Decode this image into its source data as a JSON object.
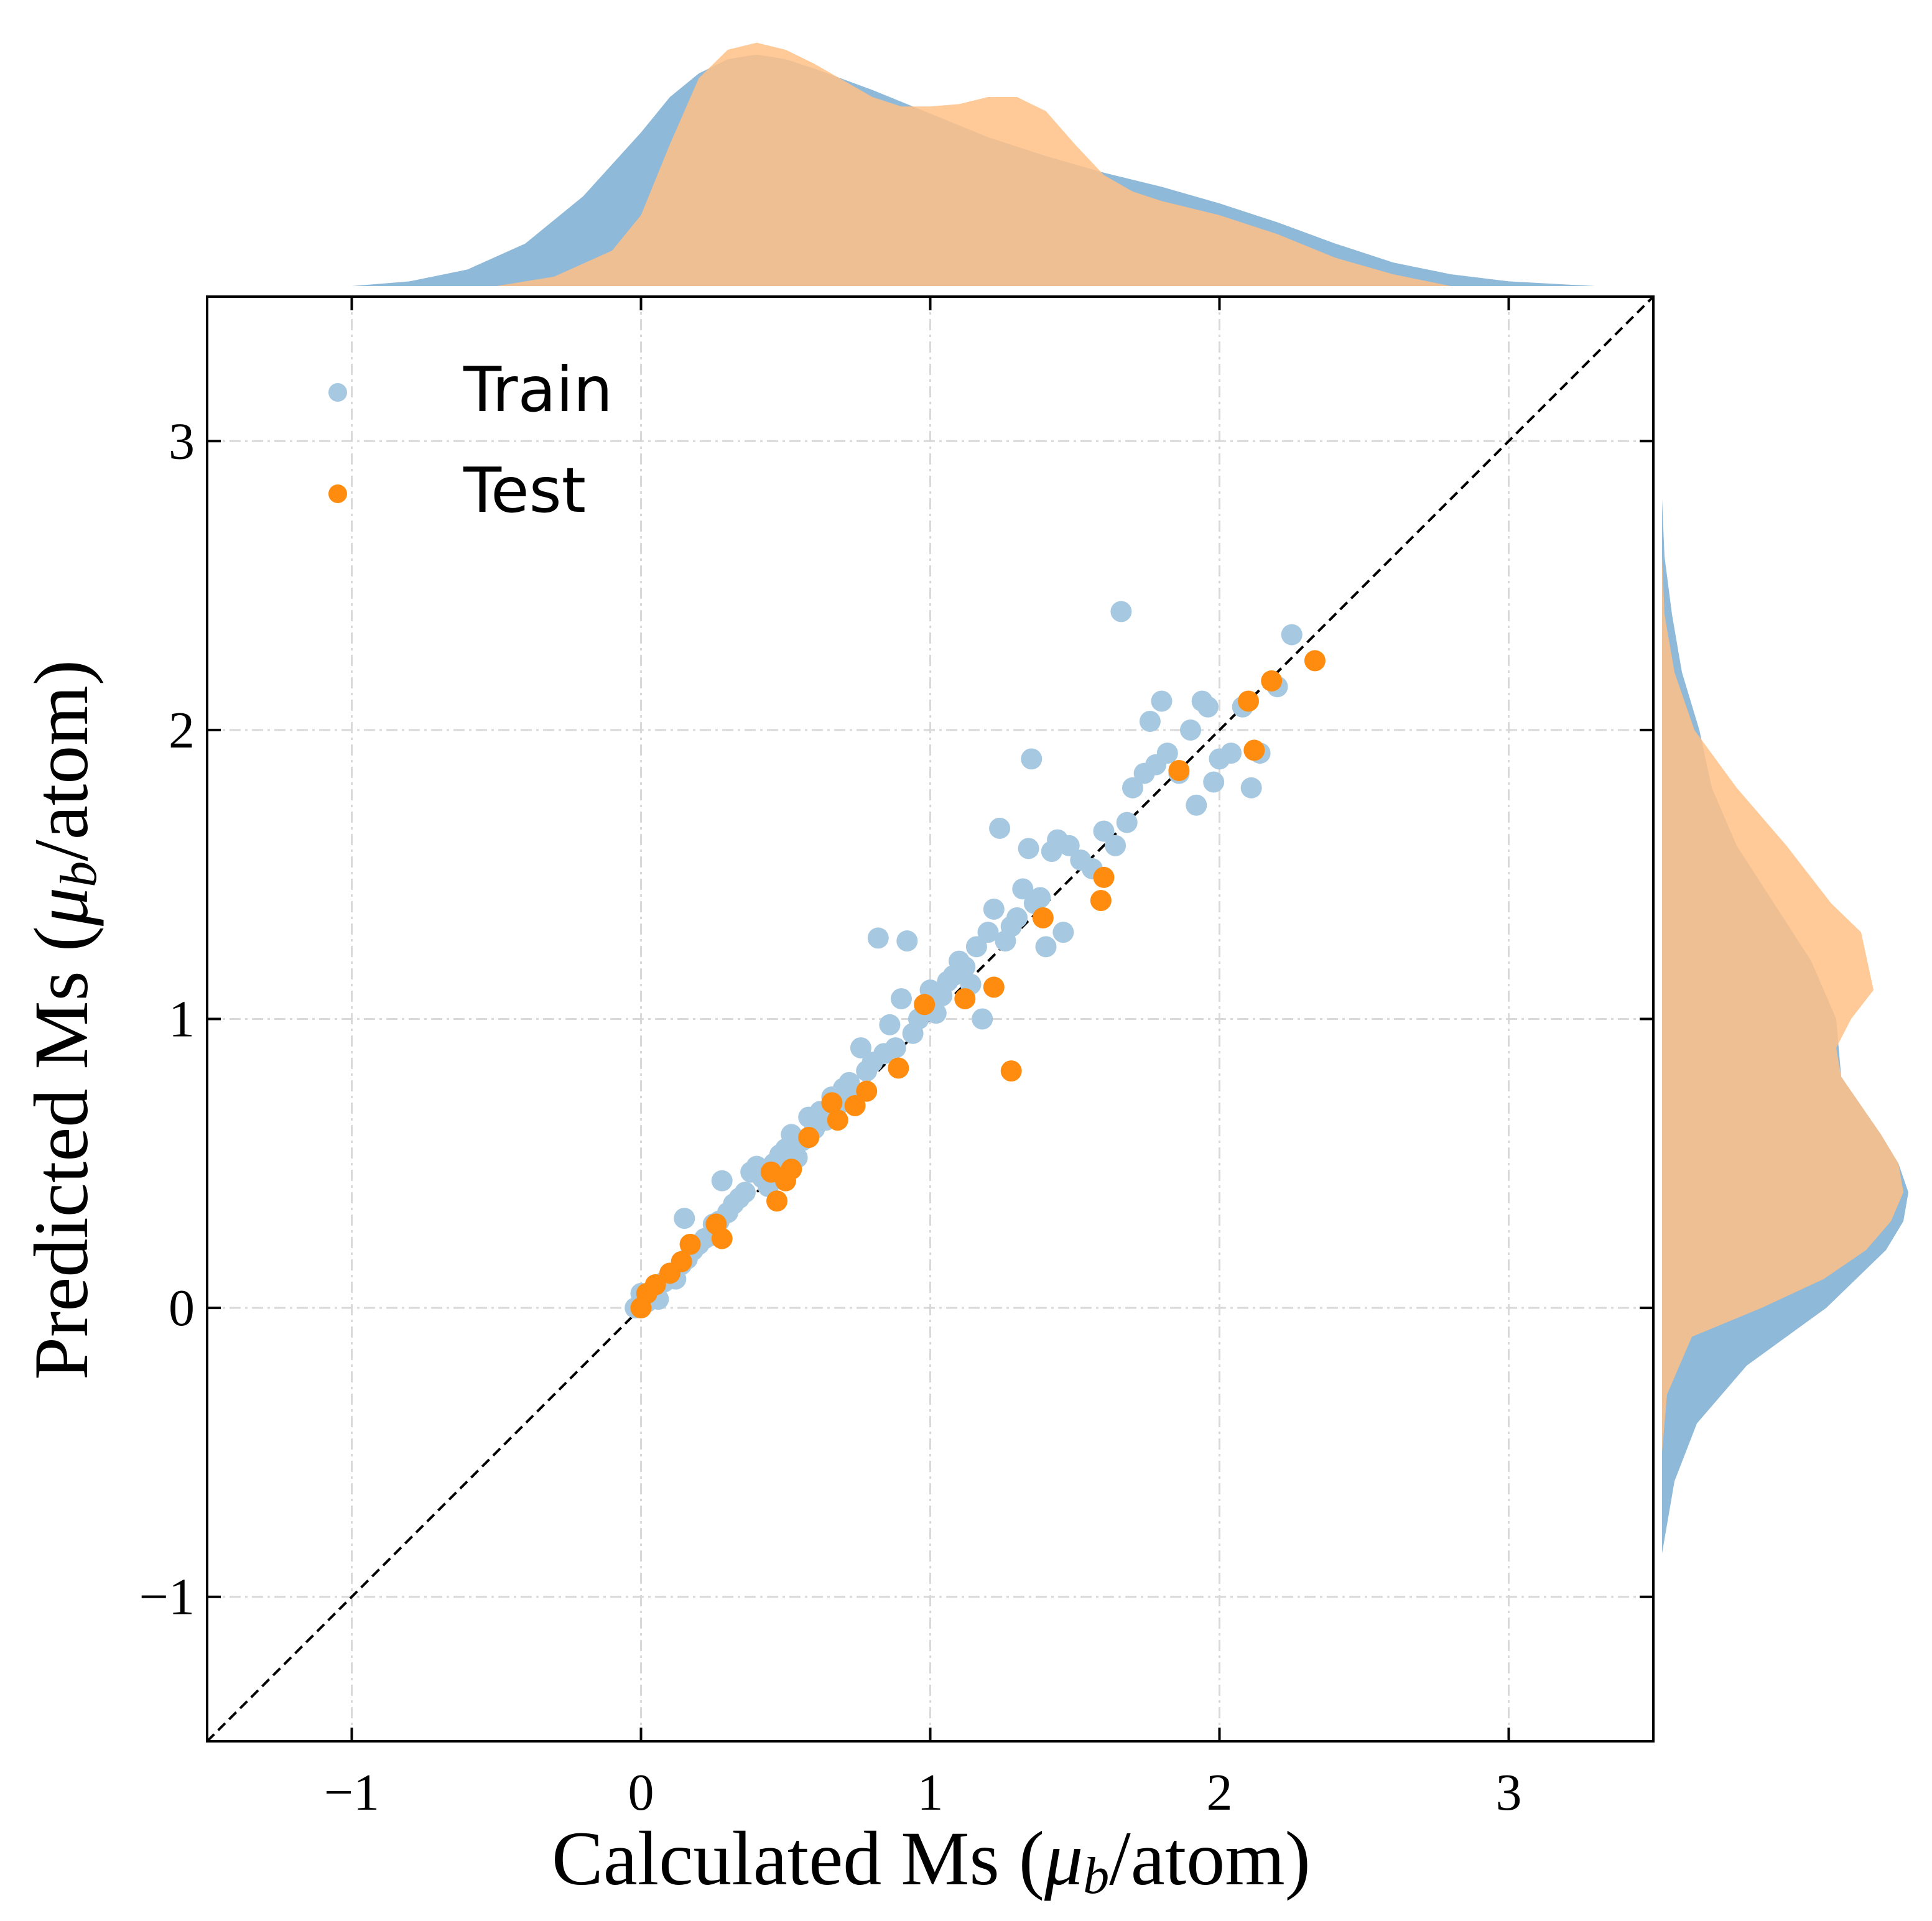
{
  "chart_data": {
    "type": "scatter",
    "xlabel_prefix": "Calculated Ms (",
    "ylabel_prefix": "Predicted Ms (",
    "label_mu": "μ",
    "label_sub": "b",
    "label_suffix": "/atom)",
    "xlim": [
      -1.5,
      3.5
    ],
    "ylim": [
      -1.5,
      3.5
    ],
    "xticks": [
      -1,
      0,
      1,
      2,
      3
    ],
    "yticks": [
      -1,
      0,
      1,
      2,
      3
    ],
    "xtick_labels": [
      "−1",
      "0",
      "1",
      "2",
      "3"
    ],
    "ytick_labels": [
      "−1",
      "0",
      "1",
      "2",
      "3"
    ],
    "grid": true,
    "identity_line": true,
    "legend_position": "top-left",
    "marginal": "kde",
    "series": [
      {
        "name": "Train",
        "color": "#a6c8e0",
        "kde_color": "#8fb9d8",
        "points": [
          [
            -0.02,
            0.0
          ],
          [
            0.0,
            0.05
          ],
          [
            0.02,
            0.02
          ],
          [
            0.04,
            0.06
          ],
          [
            0.06,
            0.03
          ],
          [
            0.08,
            0.09
          ],
          [
            0.1,
            0.12
          ],
          [
            0.12,
            0.1
          ],
          [
            0.14,
            0.15
          ],
          [
            0.15,
            0.31
          ],
          [
            0.16,
            0.17
          ],
          [
            0.18,
            0.2
          ],
          [
            0.2,
            0.22
          ],
          [
            0.22,
            0.24
          ],
          [
            0.24,
            0.25
          ],
          [
            0.25,
            0.29
          ],
          [
            0.27,
            0.3
          ],
          [
            0.28,
            0.44
          ],
          [
            0.3,
            0.33
          ],
          [
            0.32,
            0.36
          ],
          [
            0.34,
            0.38
          ],
          [
            0.36,
            0.4
          ],
          [
            0.38,
            0.47
          ],
          [
            0.4,
            0.49
          ],
          [
            0.42,
            0.45
          ],
          [
            0.44,
            0.42
          ],
          [
            0.46,
            0.5
          ],
          [
            0.48,
            0.53
          ],
          [
            0.5,
            0.55
          ],
          [
            0.52,
            0.6
          ],
          [
            0.54,
            0.52
          ],
          [
            0.56,
            0.58
          ],
          [
            0.58,
            0.66
          ],
          [
            0.6,
            0.62
          ],
          [
            0.62,
            0.68
          ],
          [
            0.64,
            0.65
          ],
          [
            0.66,
            0.73
          ],
          [
            0.68,
            0.7
          ],
          [
            0.7,
            0.76
          ],
          [
            0.72,
            0.78
          ],
          [
            0.74,
            0.74
          ],
          [
            0.76,
            0.9
          ],
          [
            0.78,
            0.82
          ],
          [
            0.8,
            0.85
          ],
          [
            0.82,
            1.28
          ],
          [
            0.84,
            0.88
          ],
          [
            0.86,
            0.98
          ],
          [
            0.88,
            0.9
          ],
          [
            0.9,
            1.07
          ],
          [
            0.92,
            1.27
          ],
          [
            0.94,
            0.95
          ],
          [
            0.96,
            1.0
          ],
          [
            0.98,
            1.05
          ],
          [
            1.0,
            1.1
          ],
          [
            1.02,
            1.02
          ],
          [
            1.04,
            1.08
          ],
          [
            1.06,
            1.13
          ],
          [
            1.08,
            1.15
          ],
          [
            1.1,
            1.2
          ],
          [
            1.12,
            1.18
          ],
          [
            1.14,
            1.12
          ],
          [
            1.16,
            1.25
          ],
          [
            1.18,
            1.0
          ],
          [
            1.2,
            1.3
          ],
          [
            1.22,
            1.38
          ],
          [
            1.24,
            1.66
          ],
          [
            1.26,
            1.27
          ],
          [
            1.28,
            1.32
          ],
          [
            1.3,
            1.35
          ],
          [
            1.32,
            1.45
          ],
          [
            1.34,
            1.59
          ],
          [
            1.35,
            1.9
          ],
          [
            1.36,
            1.4
          ],
          [
            1.38,
            1.42
          ],
          [
            1.4,
            1.25
          ],
          [
            1.42,
            1.58
          ],
          [
            1.44,
            1.62
          ],
          [
            1.46,
            1.3
          ],
          [
            1.48,
            1.6
          ],
          [
            1.52,
            1.55
          ],
          [
            1.56,
            1.52
          ],
          [
            1.6,
            1.65
          ],
          [
            1.64,
            1.6
          ],
          [
            1.66,
            2.41
          ],
          [
            1.68,
            1.68
          ],
          [
            1.7,
            1.8
          ],
          [
            1.74,
            1.85
          ],
          [
            1.76,
            2.03
          ],
          [
            1.78,
            1.88
          ],
          [
            1.8,
            2.1
          ],
          [
            1.82,
            1.92
          ],
          [
            1.86,
            1.85
          ],
          [
            1.9,
            2.0
          ],
          [
            1.92,
            1.74
          ],
          [
            1.94,
            2.1
          ],
          [
            1.96,
            2.08
          ],
          [
            1.98,
            1.82
          ],
          [
            2.0,
            1.9
          ],
          [
            2.04,
            1.92
          ],
          [
            2.08,
            2.08
          ],
          [
            2.11,
            1.8
          ],
          [
            2.14,
            1.92
          ],
          [
            2.2,
            2.15
          ],
          [
            2.25,
            2.33
          ]
        ]
      },
      {
        "name": "Test",
        "color": "#ff8c0f",
        "kde_color": "#ffbf86",
        "points": [
          [
            0.0,
            0.0
          ],
          [
            0.02,
            0.05
          ],
          [
            0.05,
            0.08
          ],
          [
            0.1,
            0.12
          ],
          [
            0.14,
            0.16
          ],
          [
            0.17,
            0.22
          ],
          [
            0.26,
            0.29
          ],
          [
            0.28,
            0.24
          ],
          [
            0.45,
            0.47
          ],
          [
            0.47,
            0.37
          ],
          [
            0.5,
            0.44
          ],
          [
            0.52,
            0.48
          ],
          [
            0.58,
            0.59
          ],
          [
            0.66,
            0.71
          ],
          [
            0.68,
            0.65
          ],
          [
            0.74,
            0.7
          ],
          [
            0.78,
            0.75
          ],
          [
            0.89,
            0.83
          ],
          [
            0.98,
            1.05
          ],
          [
            1.12,
            1.07
          ],
          [
            1.22,
            1.11
          ],
          [
            1.28,
            0.82
          ],
          [
            1.39,
            1.35
          ],
          [
            1.59,
            1.41
          ],
          [
            1.6,
            1.49
          ],
          [
            1.86,
            1.86
          ],
          [
            2.1,
            2.1
          ],
          [
            2.12,
            1.93
          ],
          [
            2.18,
            2.17
          ],
          [
            2.33,
            2.24
          ]
        ]
      }
    ],
    "kde_x": {
      "Train": [
        [
          -1.0,
          0.0
        ],
        [
          -0.8,
          0.02
        ],
        [
          -0.6,
          0.07
        ],
        [
          -0.4,
          0.18
        ],
        [
          -0.2,
          0.38
        ],
        [
          0.0,
          0.65
        ],
        [
          0.1,
          0.8
        ],
        [
          0.2,
          0.9
        ],
        [
          0.3,
          0.96
        ],
        [
          0.4,
          0.98
        ],
        [
          0.5,
          0.96
        ],
        [
          0.6,
          0.92
        ],
        [
          0.8,
          0.83
        ],
        [
          1.0,
          0.73
        ],
        [
          1.2,
          0.63
        ],
        [
          1.4,
          0.55
        ],
        [
          1.6,
          0.48
        ],
        [
          1.8,
          0.42
        ],
        [
          2.0,
          0.35
        ],
        [
          2.2,
          0.27
        ],
        [
          2.4,
          0.18
        ],
        [
          2.6,
          0.1
        ],
        [
          2.8,
          0.05
        ],
        [
          3.0,
          0.02
        ],
        [
          3.3,
          0.0
        ]
      ],
      "Test": [
        [
          -0.5,
          0.0
        ],
        [
          -0.3,
          0.04
        ],
        [
          -0.1,
          0.15
        ],
        [
          0.0,
          0.3
        ],
        [
          0.1,
          0.6
        ],
        [
          0.2,
          0.88
        ],
        [
          0.3,
          1.0
        ],
        [
          0.4,
          1.03
        ],
        [
          0.5,
          1.0
        ],
        [
          0.6,
          0.94
        ],
        [
          0.8,
          0.8
        ],
        [
          0.9,
          0.76
        ],
        [
          1.0,
          0.76
        ],
        [
          1.1,
          0.77
        ],
        [
          1.2,
          0.8
        ],
        [
          1.3,
          0.8
        ],
        [
          1.4,
          0.74
        ],
        [
          1.5,
          0.6
        ],
        [
          1.6,
          0.47
        ],
        [
          1.7,
          0.4
        ],
        [
          1.8,
          0.36
        ],
        [
          1.9,
          0.33
        ],
        [
          2.0,
          0.3
        ],
        [
          2.2,
          0.22
        ],
        [
          2.4,
          0.12
        ],
        [
          2.6,
          0.05
        ],
        [
          2.8,
          0.0
        ]
      ]
    },
    "kde_y": {
      "Train": [
        [
          -0.85,
          0.0
        ],
        [
          -0.6,
          0.05
        ],
        [
          -0.4,
          0.14
        ],
        [
          -0.2,
          0.34
        ],
        [
          0.0,
          0.66
        ],
        [
          0.2,
          0.9
        ],
        [
          0.3,
          0.97
        ],
        [
          0.4,
          0.99
        ],
        [
          0.5,
          0.95
        ],
        [
          0.6,
          0.88
        ],
        [
          0.8,
          0.72
        ],
        [
          1.0,
          0.7
        ],
        [
          1.2,
          0.6
        ],
        [
          1.4,
          0.45
        ],
        [
          1.6,
          0.3
        ],
        [
          1.8,
          0.2
        ],
        [
          2.0,
          0.15
        ],
        [
          2.2,
          0.08
        ],
        [
          2.4,
          0.04
        ],
        [
          2.6,
          0.01
        ],
        [
          2.8,
          0.0
        ],
        [
          3.2,
          0.0
        ]
      ],
      "Test": [
        [
          -0.5,
          0.0
        ],
        [
          -0.3,
          0.02
        ],
        [
          -0.1,
          0.12
        ],
        [
          0.0,
          0.4
        ],
        [
          0.1,
          0.65
        ],
        [
          0.2,
          0.82
        ],
        [
          0.3,
          0.92
        ],
        [
          0.4,
          0.97
        ],
        [
          0.5,
          0.95
        ],
        [
          0.6,
          0.88
        ],
        [
          0.8,
          0.72
        ],
        [
          0.9,
          0.7
        ],
        [
          1.0,
          0.76
        ],
        [
          1.1,
          0.85
        ],
        [
          1.3,
          0.8
        ],
        [
          1.4,
          0.68
        ],
        [
          1.6,
          0.5
        ],
        [
          1.8,
          0.3
        ],
        [
          2.0,
          0.13
        ],
        [
          2.2,
          0.05
        ],
        [
          2.4,
          0.01
        ],
        [
          2.6,
          0.0
        ]
      ]
    }
  }
}
